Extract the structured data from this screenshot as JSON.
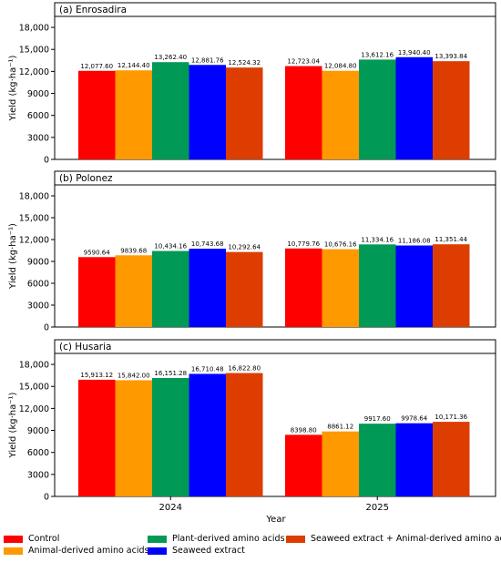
{
  "chart_data": {
    "type": "bar",
    "ylabel": "Yield (kg·ha⁻¹)",
    "xlabel": "Year",
    "categories": [
      "2024",
      "2025"
    ],
    "ylim": [
      0,
      19500
    ],
    "yticks": [
      "0",
      "3000",
      "6000",
      "9000",
      "12,000",
      "15,000",
      "18,000"
    ],
    "ytick_values": [
      0,
      3000,
      6000,
      9000,
      12000,
      15000,
      18000
    ],
    "colors": [
      "#ff0000",
      "#ff9900",
      "#009955",
      "#0000ff",
      "#dd3d00"
    ],
    "panels": [
      {
        "title": "(a) Enrosadira",
        "series": [
          {
            "name": "Control",
            "values": [
              12077.6,
              12723.04
            ],
            "labels": [
              "12,077.60",
              "12,723.04"
            ]
          },
          {
            "name": "Animal-derived amino acids",
            "values": [
              12144.4,
              12084.8
            ],
            "labels": [
              "12,144.40",
              "12,084.80"
            ]
          },
          {
            "name": "Plant-derived amino acids",
            "values": [
              13262.4,
              13612.16
            ],
            "labels": [
              "13,262.40",
              "13,612.16"
            ]
          },
          {
            "name": "Seaweed extract",
            "values": [
              12881.76,
              13940.4
            ],
            "labels": [
              "12,881.76",
              "13,940.40"
            ]
          },
          {
            "name": "Seaweed extract + Animal-derived amino acids",
            "values": [
              12524.32,
              13393.84
            ],
            "labels": [
              "12,524.32",
              "13,393.84"
            ]
          }
        ]
      },
      {
        "title": "(b) Polonez",
        "series": [
          {
            "name": "Control",
            "values": [
              9590.64,
              10779.76
            ],
            "labels": [
              "9590.64",
              "10,779.76"
            ]
          },
          {
            "name": "Animal-derived amino acids",
            "values": [
              9839.68,
              10676.16
            ],
            "labels": [
              "9839.68",
              "10,676.16"
            ]
          },
          {
            "name": "Plant-derived amino acids",
            "values": [
              10434.16,
              11334.16
            ],
            "labels": [
              "10,434.16",
              "11,334.16"
            ]
          },
          {
            "name": "Seaweed extract",
            "values": [
              10743.68,
              11186.08
            ],
            "labels": [
              "10,743.68",
              "11,186.08"
            ]
          },
          {
            "name": "Seaweed extract + Animal-derived amino acids",
            "values": [
              10292.64,
              11351.44
            ],
            "labels": [
              "10,292.64",
              "11,351.44"
            ]
          }
        ]
      },
      {
        "title": "(c) Husaria",
        "series": [
          {
            "name": "Control",
            "values": [
              15913.12,
              8398.8
            ],
            "labels": [
              "15,913.12",
              "8398.80"
            ]
          },
          {
            "name": "Animal-derived amino acids",
            "values": [
              15842.0,
              8861.12
            ],
            "labels": [
              "15,842.00",
              "8861.12"
            ]
          },
          {
            "name": "Plant-derived amino acids",
            "values": [
              16151.28,
              9917.6
            ],
            "labels": [
              "16,151.28",
              "9917.60"
            ]
          },
          {
            "name": "Seaweed extract",
            "values": [
              16710.48,
              9978.64
            ],
            "labels": [
              "16,710.48",
              "9978.64"
            ]
          },
          {
            "name": "Seaweed extract + Animal-derived amino acids",
            "values": [
              16822.8,
              10171.36
            ],
            "labels": [
              "16,822.80",
              "10,171.36"
            ]
          }
        ]
      }
    ],
    "legend": {
      "placement": "bottom",
      "items": [
        {
          "label": "Control",
          "color": "#ff0000"
        },
        {
          "label": "Animal-derived amino acids",
          "color": "#ff9900"
        },
        {
          "label": "Plant-derived amino acids",
          "color": "#009955"
        },
        {
          "label": "Seaweed extract",
          "color": "#0000ff"
        },
        {
          "label": "Seaweed extract + Animal-derived amino acids",
          "color": "#dd3d00"
        }
      ]
    }
  }
}
